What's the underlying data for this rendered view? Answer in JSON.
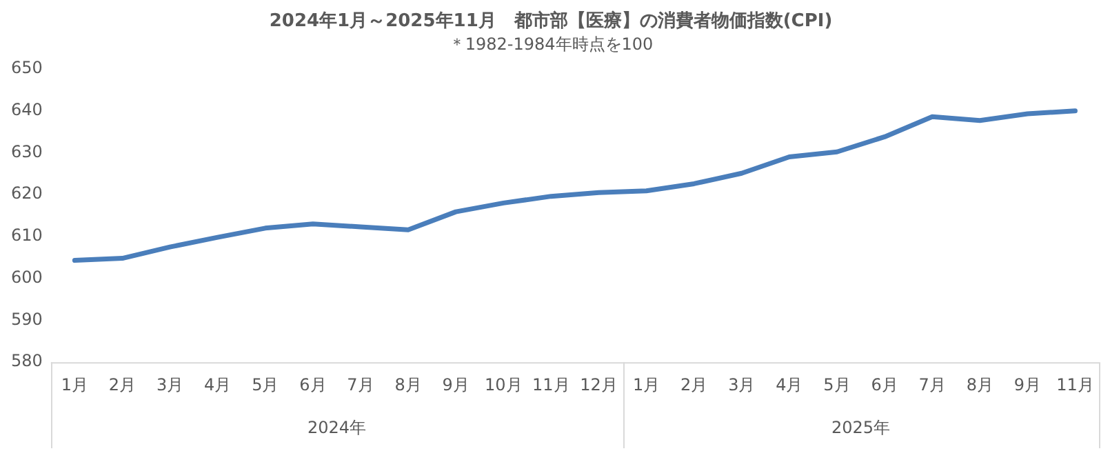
{
  "chart_data": {
    "type": "line",
    "title": "2024年1月～2025年11月　都市部【医療】の消費者物価指数(CPI)",
    "subtitle": "＊1982-1984年時点を100",
    "categories": [
      "1月",
      "2月",
      "3月",
      "4月",
      "5月",
      "6月",
      "7月",
      "8月",
      "9月",
      "10月",
      "11月",
      "12月",
      "1月",
      "2月",
      "3月",
      "4月",
      "5月",
      "6月",
      "7月",
      "8月",
      "9月",
      "11月"
    ],
    "series": [
      {
        "color": "#4a7ebb",
        "values": [
          604.3,
          604.8,
          607.5,
          609.8,
          612,
          613,
          612.3,
          611.6,
          615.9,
          618,
          619.6,
          620.5,
          620.9,
          622.6,
          625.1,
          629,
          630.2,
          633.8,
          638.6,
          637.7,
          639.3,
          640
        ]
      }
    ],
    "annotations": [
      "2024年",
      "2025年"
    ],
    "ylim": [
      580,
      650
    ],
    "yticks": [
      580,
      590,
      600,
      610,
      620,
      630,
      640,
      650
    ],
    "grid": false,
    "legend": false,
    "marker": "none",
    "line_style": "solid"
  }
}
